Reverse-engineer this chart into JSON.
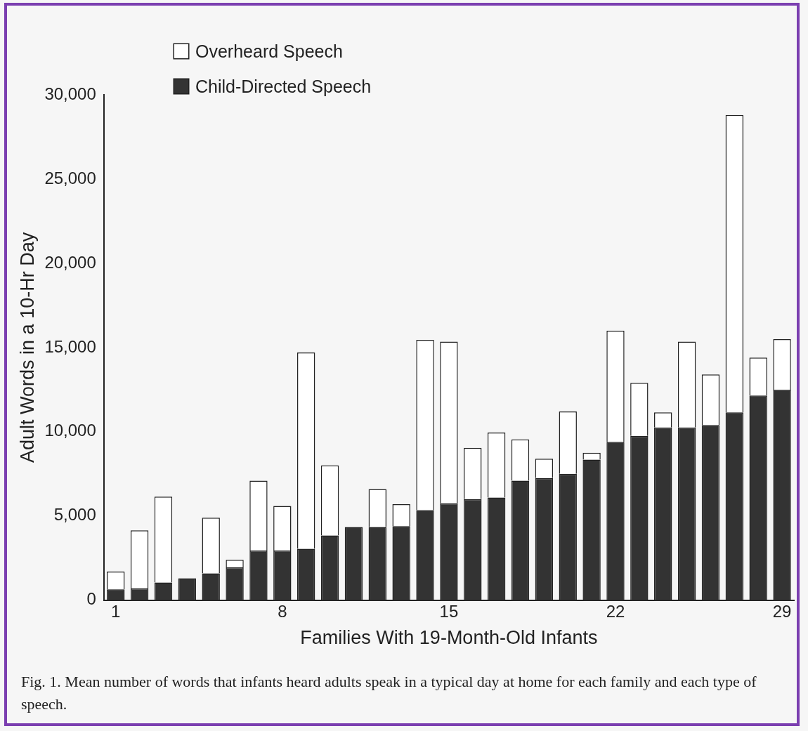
{
  "chart_data": {
    "type": "bar",
    "stacked": true,
    "xlabel": "Families With 19-Month-Old Infants",
    "ylabel": "Adult Words in a 10-Hr Day",
    "categories": [
      "1",
      null,
      null,
      null,
      null,
      null,
      null,
      "8",
      null,
      null,
      null,
      null,
      null,
      null,
      "15",
      null,
      null,
      null,
      null,
      null,
      null,
      "22",
      null,
      null,
      null,
      null,
      null,
      null,
      "29"
    ],
    "series": [
      {
        "name": "Child-Directed Speech",
        "color": "#333333",
        "values": [
          650,
          700,
          1050,
          1300,
          1600,
          1950,
          2950,
          2950,
          3050,
          3850,
          4350,
          4350,
          4400,
          5350,
          5750,
          6000,
          6100,
          7100,
          7250,
          7500,
          8350,
          9400,
          9750,
          10250,
          10250,
          10400,
          11150,
          12150,
          12500
        ]
      },
      {
        "name": "Overheard Speech",
        "color": "#ffffff",
        "values": [
          1050,
          3450,
          5100,
          0,
          3300,
          450,
          4150,
          2650,
          11650,
          4150,
          0,
          2250,
          1300,
          10100,
          9600,
          3050,
          3850,
          2450,
          1150,
          3700,
          400,
          6600,
          3150,
          900,
          5100,
          3000,
          17650,
          2250,
          3000
        ]
      }
    ],
    "ylim": [
      0,
      30000
    ],
    "yticks": [
      {
        "value": 0,
        "label": "0"
      },
      {
        "value": 5000,
        "label": "5,000"
      },
      {
        "value": 10000,
        "label": "10,000"
      },
      {
        "value": 15000,
        "label": "15,000"
      },
      {
        "value": 20000,
        "label": "20,000"
      },
      {
        "value": 25000,
        "label": "25,000"
      },
      {
        "value": 30000,
        "label": "30,000"
      }
    ],
    "legend": "top left",
    "annotations": [
      "Fig. 1. Mean number of words that infants heard adults speak in a typical day at home for each family and each type of speech."
    ]
  }
}
